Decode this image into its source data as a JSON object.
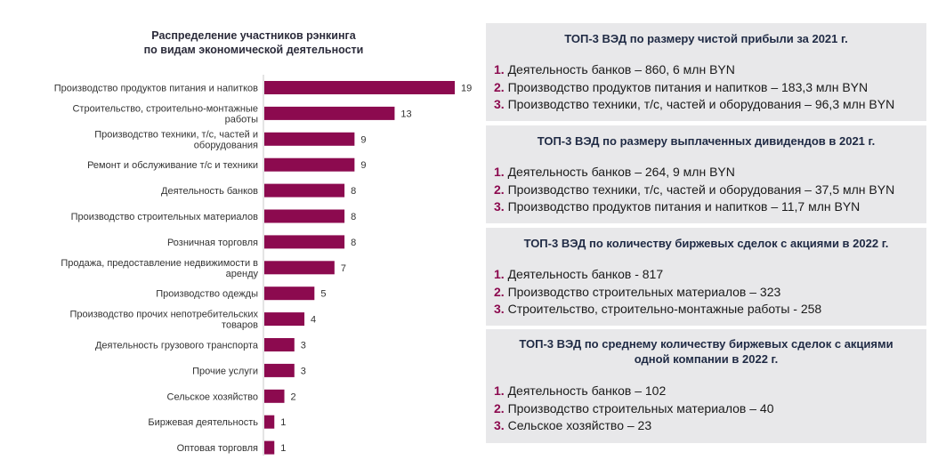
{
  "chart_data": {
    "type": "bar",
    "orientation": "horizontal",
    "title": "Распределение участников рэнкинга по видам экономической деятельности",
    "title_lines": [
      "Распределение участников рэнкинга",
      "по видам экономической деятельности"
    ],
    "categories": [
      [
        "Производство продуктов питания и напитков"
      ],
      [
        "Строительство, строительно-монтажные",
        "работы"
      ],
      [
        "Производство техники, т/с, частей и",
        "оборудования"
      ],
      [
        "Ремонт и обслуживание т/с и техники"
      ],
      [
        "Деятельность банков"
      ],
      [
        "Производство строительных материалов"
      ],
      [
        "Розничная торговля"
      ],
      [
        "Продажа, предоставление недвижимости в",
        "аренду"
      ],
      [
        "Производство одежды"
      ],
      [
        "Производство прочих непотребительских",
        "товаров"
      ],
      [
        "Деятельность грузового транспорта"
      ],
      [
        "Прочие услуги"
      ],
      [
        "Сельское хозяйство"
      ],
      [
        "Биржевая деятельность"
      ],
      [
        "Оптовая торговля"
      ]
    ],
    "values": [
      19,
      13,
      9,
      9,
      8,
      8,
      8,
      7,
      5,
      4,
      3,
      3,
      2,
      1,
      1
    ],
    "bar_color": "#8c0a4f",
    "xlim": [
      0,
      19
    ],
    "grid": false,
    "xlabel": "",
    "ylabel": ""
  },
  "colors": {
    "accent": "#8c0a4f",
    "box_bg": "#e8e8ea",
    "box_title": "#1f2a44"
  },
  "boxes": [
    {
      "title": [
        "ТОП-3 ВЭД по размеру чистой прибыли за 2021 г."
      ],
      "items": [
        {
          "num": "1.",
          "text": "Деятельность банков – 860, 6 млн BYN"
        },
        {
          "num": "2.",
          "text": "Производство продуктов питания и напитков – 183,3 млн BYN"
        },
        {
          "num": "3.",
          "text": "Производство техники, т/с, частей и оборудования – 96,3 млн BYN"
        }
      ]
    },
    {
      "title": [
        "ТОП-3 ВЭД по размеру выплаченных дивидендов в 2021 г."
      ],
      "items": [
        {
          "num": "1.",
          "text": "Деятельность банков – 264, 9 млн BYN"
        },
        {
          "num": "2.",
          "text": "Производство техники, т/с, частей и оборудования – 37,5 млн BYN"
        },
        {
          "num": "3.",
          "text": "Производство продуктов питания и напитков – 11,7 млн BYN"
        }
      ]
    },
    {
      "title": [
        "ТОП-3 ВЭД по количеству биржевых сделок с акциями в 2022 г."
      ],
      "items": [
        {
          "num": "1.",
          "text": "Деятельность банков - 817"
        },
        {
          "num": "2.",
          "text": "Производство строительных материалов – 323"
        },
        {
          "num": "3.",
          "text": "Строительство, строительно-монтажные работы - 258"
        }
      ]
    },
    {
      "title": [
        "ТОП-3 ВЭД по среднему количеству биржевых сделок с акциями",
        "одной компании в 2022 г."
      ],
      "items": [
        {
          "num": "1.",
          "text": "Деятельность банков – 102"
        },
        {
          "num": "2.",
          "text": "Производство строительных материалов – 40"
        },
        {
          "num": "3.",
          "text": "Сельское хозяйство – 23"
        }
      ]
    }
  ]
}
